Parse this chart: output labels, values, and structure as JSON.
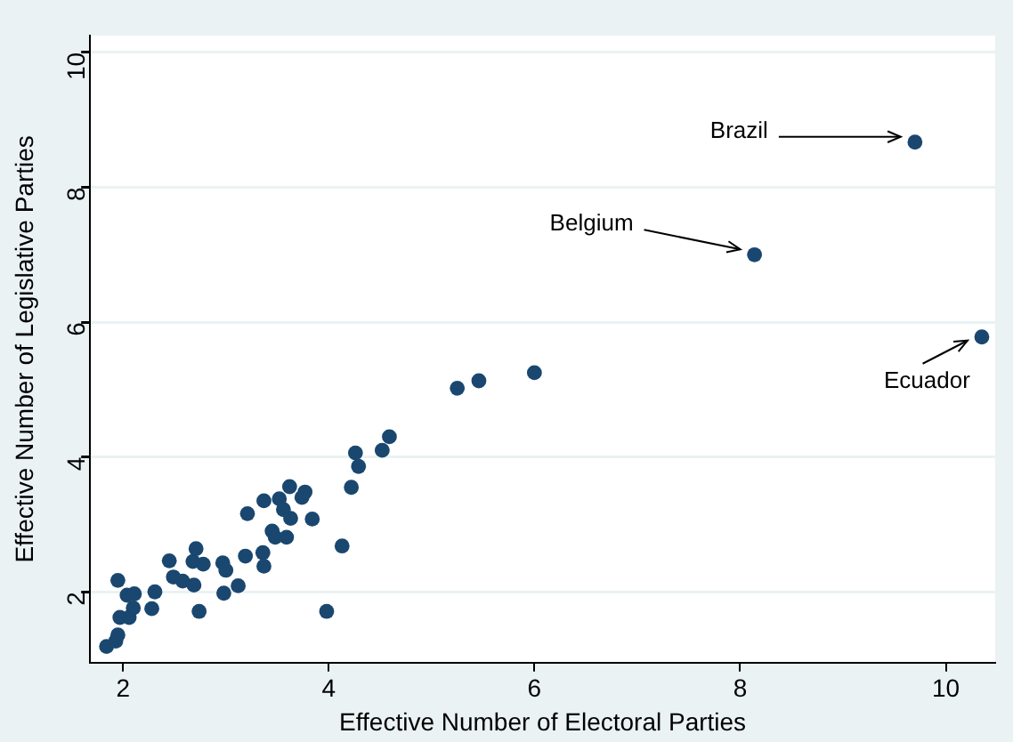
{
  "chart_data": {
    "type": "scatter",
    "xlabel": "Effective Number of Electoral Parties",
    "ylabel": "Effective Number of Legislative Parties",
    "x": [
      1.84,
      1.93,
      1.95,
      1.95,
      2.0,
      2.04,
      2.11,
      1.97,
      2.06,
      2.1,
      2.28,
      2.31,
      2.28,
      2.45,
      2.49,
      2.58,
      2.68,
      2.71,
      2.69,
      2.78,
      2.74,
      2.97,
      3.0,
      2.98,
      3.1,
      3.12,
      3.21,
      3.19,
      3.37,
      3.36,
      3.37,
      3.45,
      3.48,
      3.52,
      3.56,
      3.62,
      3.63,
      3.59,
      3.74,
      3.77,
      3.84,
      3.98,
      4.13,
      4.22,
      4.26,
      4.29,
      4.52,
      4.59,
      5.25,
      5.46,
      6.0,
      8.14,
      9.7,
      10.35
    ],
    "series": [
      {
        "color": "#1a476f",
        "values": [
          1.19,
          1.27,
          1.36,
          2.17,
          null,
          1.95,
          1.97,
          1.62,
          1.62,
          1.76,
          null,
          2.0,
          1.75,
          2.46,
          2.22,
          2.16,
          2.45,
          2.64,
          2.1,
          2.41,
          1.71,
          2.43,
          2.32,
          1.98,
          null,
          2.09,
          3.16,
          2.53,
          3.35,
          2.58,
          2.38,
          2.9,
          2.81,
          3.38,
          3.22,
          3.56,
          3.09,
          2.81,
          3.4,
          3.48,
          3.08,
          1.71,
          2.68,
          3.55,
          4.06,
          3.86,
          4.1,
          4.3,
          5.02,
          5.13,
          5.25,
          7.0,
          8.67,
          5.78
        ]
      }
    ],
    "xlim": [
      1.68,
      10.48
    ],
    "xticks": [
      2,
      4,
      6,
      8,
      10
    ],
    "ylim": [
      0.95,
      10.25
    ],
    "yticks": [
      2,
      4,
      6,
      8,
      10
    ],
    "grid": "y",
    "marker": "circle",
    "legend": false,
    "annotations": [
      {
        "text": "Brazil",
        "x": 9.7,
        "y": 8.67
      },
      {
        "text": "Belgium",
        "x": 8.14,
        "y": 7.0
      },
      {
        "text": "Ecuador",
        "x": 10.35,
        "y": 5.78
      }
    ]
  }
}
